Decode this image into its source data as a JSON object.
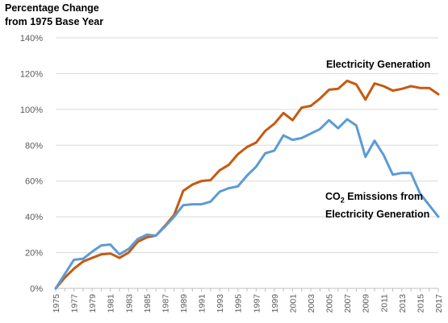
{
  "chart_data": {
    "type": "line",
    "ylabel_lines": [
      "Percentage Change",
      "from 1975 Base Year"
    ],
    "ylim": [
      0,
      140
    ],
    "yticks": [
      0,
      20,
      40,
      60,
      80,
      100,
      120,
      140
    ],
    "ytick_labels": [
      "0%",
      "20%",
      "40%",
      "60%",
      "80%",
      "100%",
      "120%",
      "140%"
    ],
    "xticks": [
      1975,
      1977,
      1979,
      1981,
      1983,
      1985,
      1987,
      1989,
      1991,
      1993,
      1995,
      1997,
      1999,
      2001,
      2003,
      2005,
      2007,
      2009,
      2011,
      2013,
      2015,
      2017
    ],
    "xtick_labels": [
      "1975",
      "1977",
      "1979",
      "1981",
      "1983",
      "1985",
      "1987",
      "1989",
      "1991",
      "1993",
      "1995",
      "1997",
      "1999",
      "2001",
      "2003",
      "2005",
      "2007",
      "2009",
      "2011",
      "2013",
      "2015",
      "2017"
    ],
    "grid": "horizontal",
    "x": [
      1975,
      1976,
      1977,
      1978,
      1979,
      1980,
      1981,
      1982,
      1983,
      1984,
      1985,
      1986,
      1987,
      1988,
      1989,
      1990,
      1991,
      1992,
      1993,
      1994,
      1995,
      1996,
      1997,
      1998,
      1999,
      2000,
      2001,
      2002,
      2003,
      2004,
      2005,
      2006,
      2007,
      2008,
      2009,
      2010,
      2011,
      2012,
      2013,
      2014,
      2015,
      2016,
      2017
    ],
    "series": [
      {
        "name": "Electricity Generation",
        "color": "#c55a11",
        "values": [
          0,
          6,
          11,
          15,
          17,
          19,
          19.5,
          17,
          20,
          26,
          28.5,
          29.5,
          35,
          41,
          54.5,
          58,
          60,
          60.5,
          66,
          69,
          75,
          79,
          81.5,
          88,
          92,
          98,
          94,
          101,
          102,
          106,
          111,
          111.5,
          116,
          114,
          105.5,
          114.5,
          113,
          110.5,
          111.5,
          113,
          112,
          112,
          108.5
        ]
      },
      {
        "name": "CO₂ Emissions from Electricity Generation",
        "color": "#5b9bd5",
        "values": [
          0,
          8,
          16,
          16.5,
          20.5,
          24,
          24.5,
          19,
          22,
          27.5,
          30,
          29.5,
          34.5,
          40,
          46.5,
          47,
          47,
          48.5,
          54,
          56,
          57,
          63,
          68,
          75.5,
          77,
          85.5,
          83,
          84,
          86.5,
          89,
          94,
          89.5,
          94.5,
          91,
          73.5,
          82.5,
          74.5,
          63.5,
          64.5,
          64.5,
          53,
          46.5,
          40
        ]
      }
    ],
    "annotations": {
      "electricity": "Electricity Generation",
      "co2_prefix": "CO",
      "co2_sub": "2",
      "co2_rest": " Emissions from",
      "co2_line2": "Electricity Generation"
    }
  }
}
